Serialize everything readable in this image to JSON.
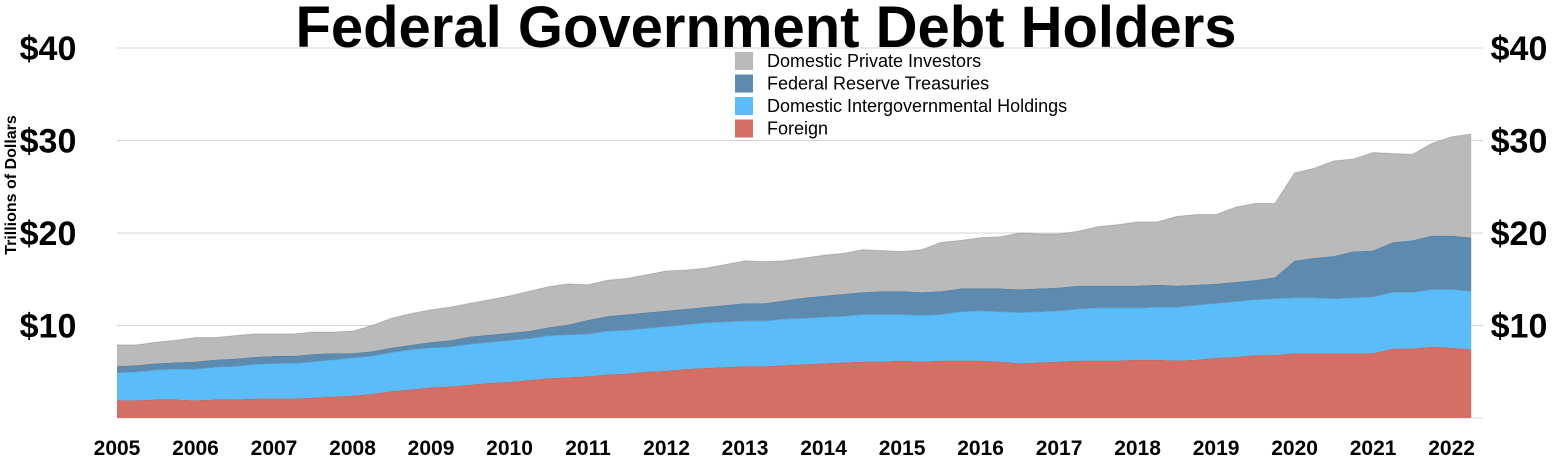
{
  "chart_data": {
    "type": "area",
    "stacked": true,
    "title": "Federal Government Debt Holders",
    "ylabel": "Trillions of Dollars",
    "xlabel": "",
    "xlim": [
      2005,
      2022.4
    ],
    "ylim": [
      0,
      40
    ],
    "grid": true,
    "legend_position": "top-center",
    "x_ticks": [
      "2005",
      "2006",
      "2007",
      "2008",
      "2009",
      "2010",
      "2011",
      "2012",
      "2013",
      "2014",
      "2015",
      "2016",
      "2017",
      "2018",
      "2019",
      "2020",
      "2021",
      "2022"
    ],
    "y_ticks": [
      "$10",
      "$20",
      "$30",
      "$40"
    ],
    "y_tick_values": [
      10,
      20,
      30,
      40
    ],
    "x": [
      2005.0,
      2005.25,
      2005.5,
      2005.75,
      2006.0,
      2006.25,
      2006.5,
      2006.75,
      2007.0,
      2007.25,
      2007.5,
      2007.75,
      2008.0,
      2008.25,
      2008.5,
      2008.75,
      2009.0,
      2009.25,
      2009.5,
      2009.75,
      2010.0,
      2010.25,
      2010.5,
      2010.75,
      2011.0,
      2011.25,
      2011.5,
      2011.75,
      2012.0,
      2012.25,
      2012.5,
      2012.75,
      2013.0,
      2013.25,
      2013.5,
      2013.75,
      2014.0,
      2014.25,
      2014.5,
      2014.75,
      2015.0,
      2015.25,
      2015.5,
      2015.75,
      2016.0,
      2016.25,
      2016.5,
      2016.75,
      2017.0,
      2017.25,
      2017.5,
      2017.75,
      2018.0,
      2018.25,
      2018.5,
      2018.75,
      2019.0,
      2019.25,
      2019.5,
      2019.75,
      2020.0,
      2020.25,
      2020.5,
      2020.75,
      2021.0,
      2021.25,
      2021.5,
      2021.75,
      2022.0,
      2022.25
    ],
    "series": [
      {
        "name": "Foreign",
        "color": "#d46f65",
        "values": [
          1.9,
          1.9,
          2.0,
          2.0,
          1.9,
          2.0,
          2.0,
          2.1,
          2.1,
          2.1,
          2.2,
          2.3,
          2.4,
          2.6,
          2.9,
          3.1,
          3.3,
          3.4,
          3.6,
          3.8,
          3.9,
          4.1,
          4.3,
          4.4,
          4.5,
          4.7,
          4.8,
          5.0,
          5.1,
          5.3,
          5.4,
          5.5,
          5.6,
          5.6,
          5.7,
          5.8,
          5.9,
          6.0,
          6.1,
          6.1,
          6.2,
          6.1,
          6.2,
          6.2,
          6.2,
          6.1,
          5.9,
          6.0,
          6.1,
          6.2,
          6.2,
          6.2,
          6.3,
          6.3,
          6.2,
          6.3,
          6.5,
          6.6,
          6.8,
          6.8,
          7.0,
          7.0,
          7.0,
          7.0,
          7.0,
          7.5,
          7.5,
          7.7,
          7.6,
          7.4
        ]
      },
      {
        "name": "Domestic Intergovernmental Holdings",
        "color": "#5bbcfa",
        "values": [
          3.0,
          3.1,
          3.2,
          3.3,
          3.4,
          3.5,
          3.6,
          3.7,
          3.8,
          3.8,
          3.9,
          4.0,
          4.1,
          4.1,
          4.2,
          4.3,
          4.3,
          4.3,
          4.4,
          4.4,
          4.5,
          4.5,
          4.6,
          4.6,
          4.6,
          4.7,
          4.7,
          4.7,
          4.8,
          4.8,
          4.9,
          4.9,
          4.9,
          4.9,
          5.0,
          5.0,
          5.0,
          5.0,
          5.1,
          5.1,
          5.0,
          5.0,
          5.0,
          5.3,
          5.4,
          5.4,
          5.5,
          5.5,
          5.5,
          5.6,
          5.7,
          5.7,
          5.6,
          5.7,
          5.8,
          5.9,
          5.9,
          6.0,
          6.0,
          6.1,
          6.0,
          6.0,
          5.9,
          6.0,
          6.1,
          6.1,
          6.1,
          6.2,
          6.3,
          6.3
        ]
      },
      {
        "name": "Federal Reserve Treasuries",
        "color": "#5d8bb0",
        "values": [
          0.7,
          0.7,
          0.7,
          0.7,
          0.8,
          0.8,
          0.8,
          0.8,
          0.8,
          0.8,
          0.8,
          0.7,
          0.5,
          0.5,
          0.5,
          0.5,
          0.6,
          0.7,
          0.8,
          0.8,
          0.8,
          0.8,
          0.9,
          1.1,
          1.5,
          1.6,
          1.7,
          1.7,
          1.7,
          1.7,
          1.7,
          1.8,
          1.9,
          1.9,
          2.0,
          2.2,
          2.3,
          2.4,
          2.4,
          2.5,
          2.5,
          2.5,
          2.5,
          2.5,
          2.4,
          2.5,
          2.5,
          2.5,
          2.5,
          2.5,
          2.4,
          2.4,
          2.4,
          2.4,
          2.3,
          2.2,
          2.1,
          2.1,
          2.1,
          2.3,
          4.0,
          4.3,
          4.6,
          5.0,
          5.0,
          5.4,
          5.6,
          5.8,
          5.8,
          5.8
        ]
      },
      {
        "name": "Domestic Private Investors",
        "color": "#bababa",
        "values": [
          2.3,
          2.2,
          2.3,
          2.4,
          2.6,
          2.4,
          2.5,
          2.5,
          2.4,
          2.4,
          2.4,
          2.3,
          2.4,
          2.8,
          3.2,
          3.4,
          3.5,
          3.6,
          3.6,
          3.8,
          4.0,
          4.3,
          4.4,
          4.4,
          3.8,
          3.9,
          3.9,
          4.1,
          4.3,
          4.2,
          4.2,
          4.4,
          4.6,
          4.5,
          4.3,
          4.3,
          4.4,
          4.4,
          4.6,
          4.4,
          4.3,
          4.6,
          5.3,
          5.2,
          5.5,
          5.6,
          6.1,
          5.9,
          5.8,
          5.9,
          6.4,
          6.6,
          6.9,
          6.8,
          7.5,
          7.6,
          7.5,
          8.1,
          8.3,
          8.0,
          9.5,
          9.7,
          10.3,
          10.0,
          10.6,
          9.6,
          9.3,
          10.0,
          10.7,
          11.2
        ]
      }
    ]
  }
}
